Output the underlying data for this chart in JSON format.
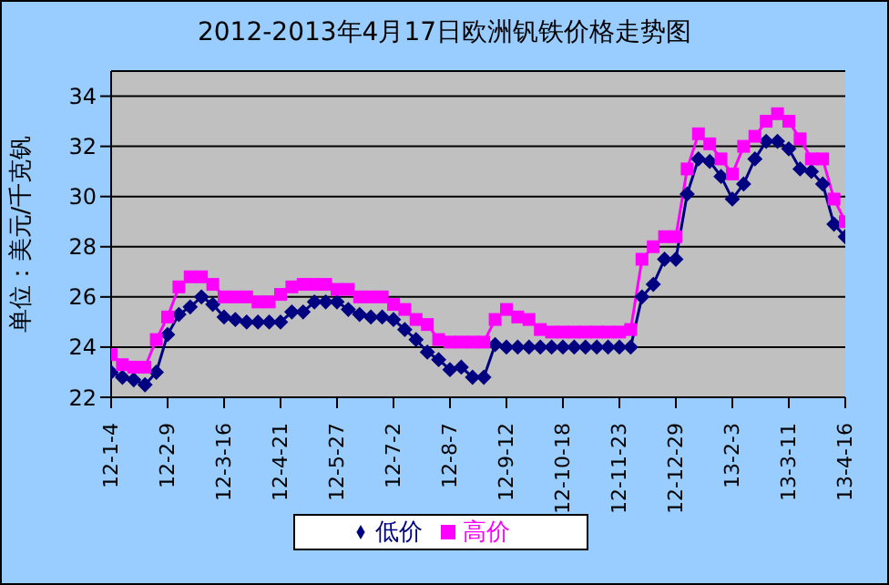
{
  "chart_data": {
    "type": "line",
    "title": "2012-2013年4月17日欧洲钒铁价格走势图",
    "ylabel": "单位：美元/千克钒",
    "categories": [
      "12-1-4",
      null,
      null,
      null,
      null,
      "12-2-9",
      null,
      null,
      null,
      null,
      "12-3-16",
      null,
      null,
      null,
      null,
      "12-4-21",
      null,
      null,
      null,
      null,
      "12-5-27",
      null,
      null,
      null,
      null,
      "12-7-2",
      null,
      null,
      null,
      null,
      "12-8-7",
      null,
      null,
      null,
      null,
      "12-9-12",
      null,
      null,
      null,
      null,
      "12-10-18",
      null,
      null,
      null,
      null,
      "12-11-23",
      null,
      null,
      null,
      null,
      "12-12-29",
      null,
      null,
      null,
      null,
      "13-2-3",
      null,
      null,
      null,
      null,
      "13-3-11",
      null,
      null,
      null,
      null,
      "13-4-16"
    ],
    "series": [
      {
        "name": "低价",
        "color": "#000080",
        "marker": "diamond",
        "values": [
          23,
          22.8,
          22.7,
          22.5,
          23,
          24.5,
          25.3,
          25.6,
          26,
          25.7,
          25.2,
          25.1,
          25,
          25,
          25,
          25,
          25.4,
          25.4,
          25.8,
          25.8,
          25.8,
          25.5,
          25.3,
          25.2,
          25.2,
          25.1,
          24.7,
          24.3,
          23.8,
          23.5,
          23.1,
          23.2,
          22.8,
          22.8,
          24.1,
          24,
          24,
          24,
          24,
          24,
          24,
          24,
          24,
          24,
          24,
          24,
          24,
          26,
          26.5,
          27.5,
          27.5,
          30.1,
          31.5,
          31.4,
          30.8,
          29.9,
          30.5,
          31.5,
          32.2,
          32.2,
          31.9,
          31.1,
          31,
          30.5,
          28.9,
          28.4
        ]
      },
      {
        "name": "高价",
        "color": "#ff00ff",
        "marker": "square",
        "values": [
          23.7,
          23.3,
          23.2,
          23.2,
          24.3,
          25.2,
          26.4,
          26.8,
          26.8,
          26.5,
          26,
          26,
          26,
          25.8,
          25.8,
          26.1,
          26.4,
          26.5,
          26.5,
          26.5,
          26.3,
          26.3,
          26,
          26,
          26,
          25.7,
          25.5,
          25.1,
          24.9,
          24.3,
          24.2,
          24.2,
          24.2,
          24.2,
          25.1,
          25.5,
          25.2,
          25.1,
          24.7,
          24.6,
          24.6,
          24.6,
          24.6,
          24.6,
          24.6,
          24.6,
          24.7,
          27.5,
          28,
          28.4,
          28.4,
          31.1,
          32.5,
          32.1,
          31.5,
          30.9,
          32,
          32.4,
          33,
          33.3,
          33,
          32.3,
          31.5,
          31.5,
          29.9,
          29
        ]
      }
    ],
    "ylim": [
      22,
      35
    ],
    "yticks": [
      22,
      24,
      26,
      28,
      30,
      32,
      34
    ],
    "grid": "y",
    "legend": "bottom"
  }
}
